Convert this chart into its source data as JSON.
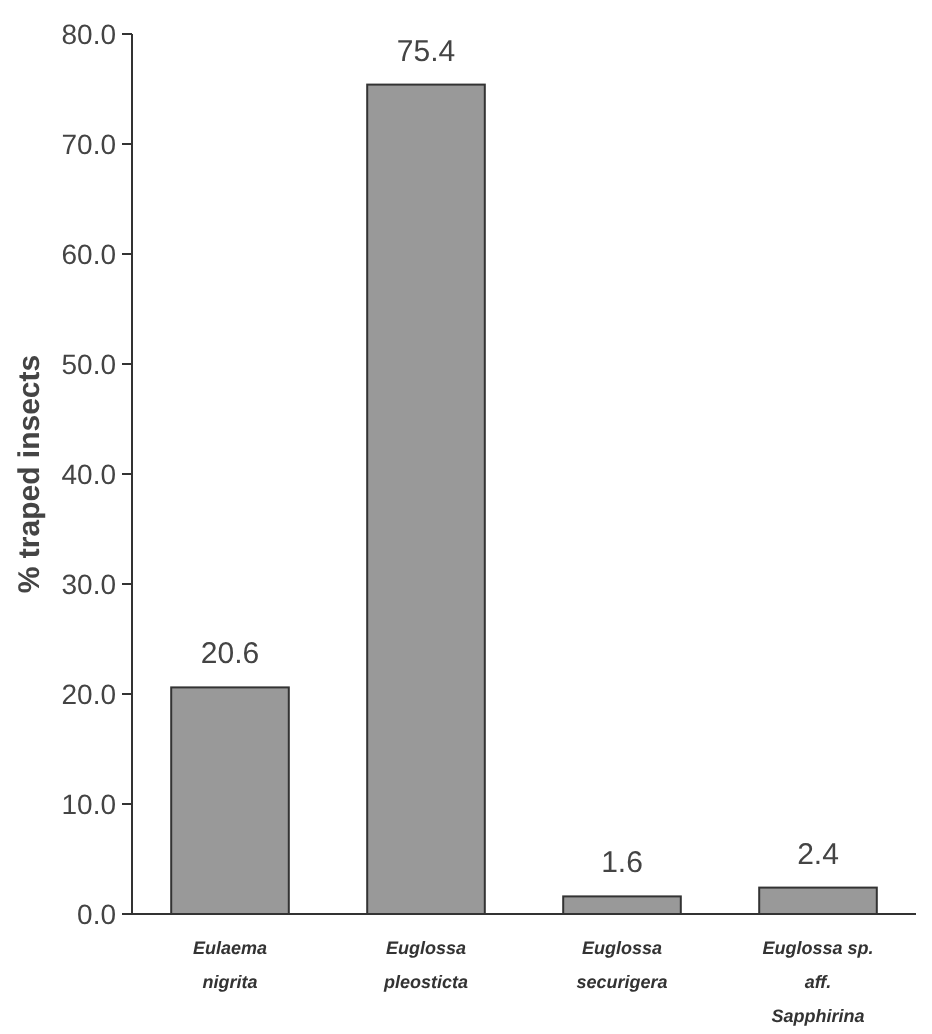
{
  "chart_data": {
    "type": "bar",
    "ylabel": "% traped insects",
    "categories": [
      "Eulaema nigrita",
      "Euglossa pleosticta",
      "Euglossa securigera",
      "Euglossa sp. aff. Sapphirina"
    ],
    "values": [
      20.6,
      75.4,
      1.6,
      2.4
    ],
    "color": "#999999",
    "data_labels": true,
    "ylim": [
      0,
      80
    ],
    "yticks": [
      {
        "value": 0,
        "label": "0.0"
      },
      {
        "value": 10,
        "label": "10.0"
      },
      {
        "value": 20,
        "label": "20.0"
      },
      {
        "value": 30,
        "label": "30.0"
      },
      {
        "value": 40,
        "label": "40.0"
      },
      {
        "value": 50,
        "label": "50.0"
      },
      {
        "value": 60,
        "label": "60.0"
      },
      {
        "value": 70,
        "label": "70.0"
      },
      {
        "value": 80,
        "label": "80.0"
      }
    ]
  }
}
